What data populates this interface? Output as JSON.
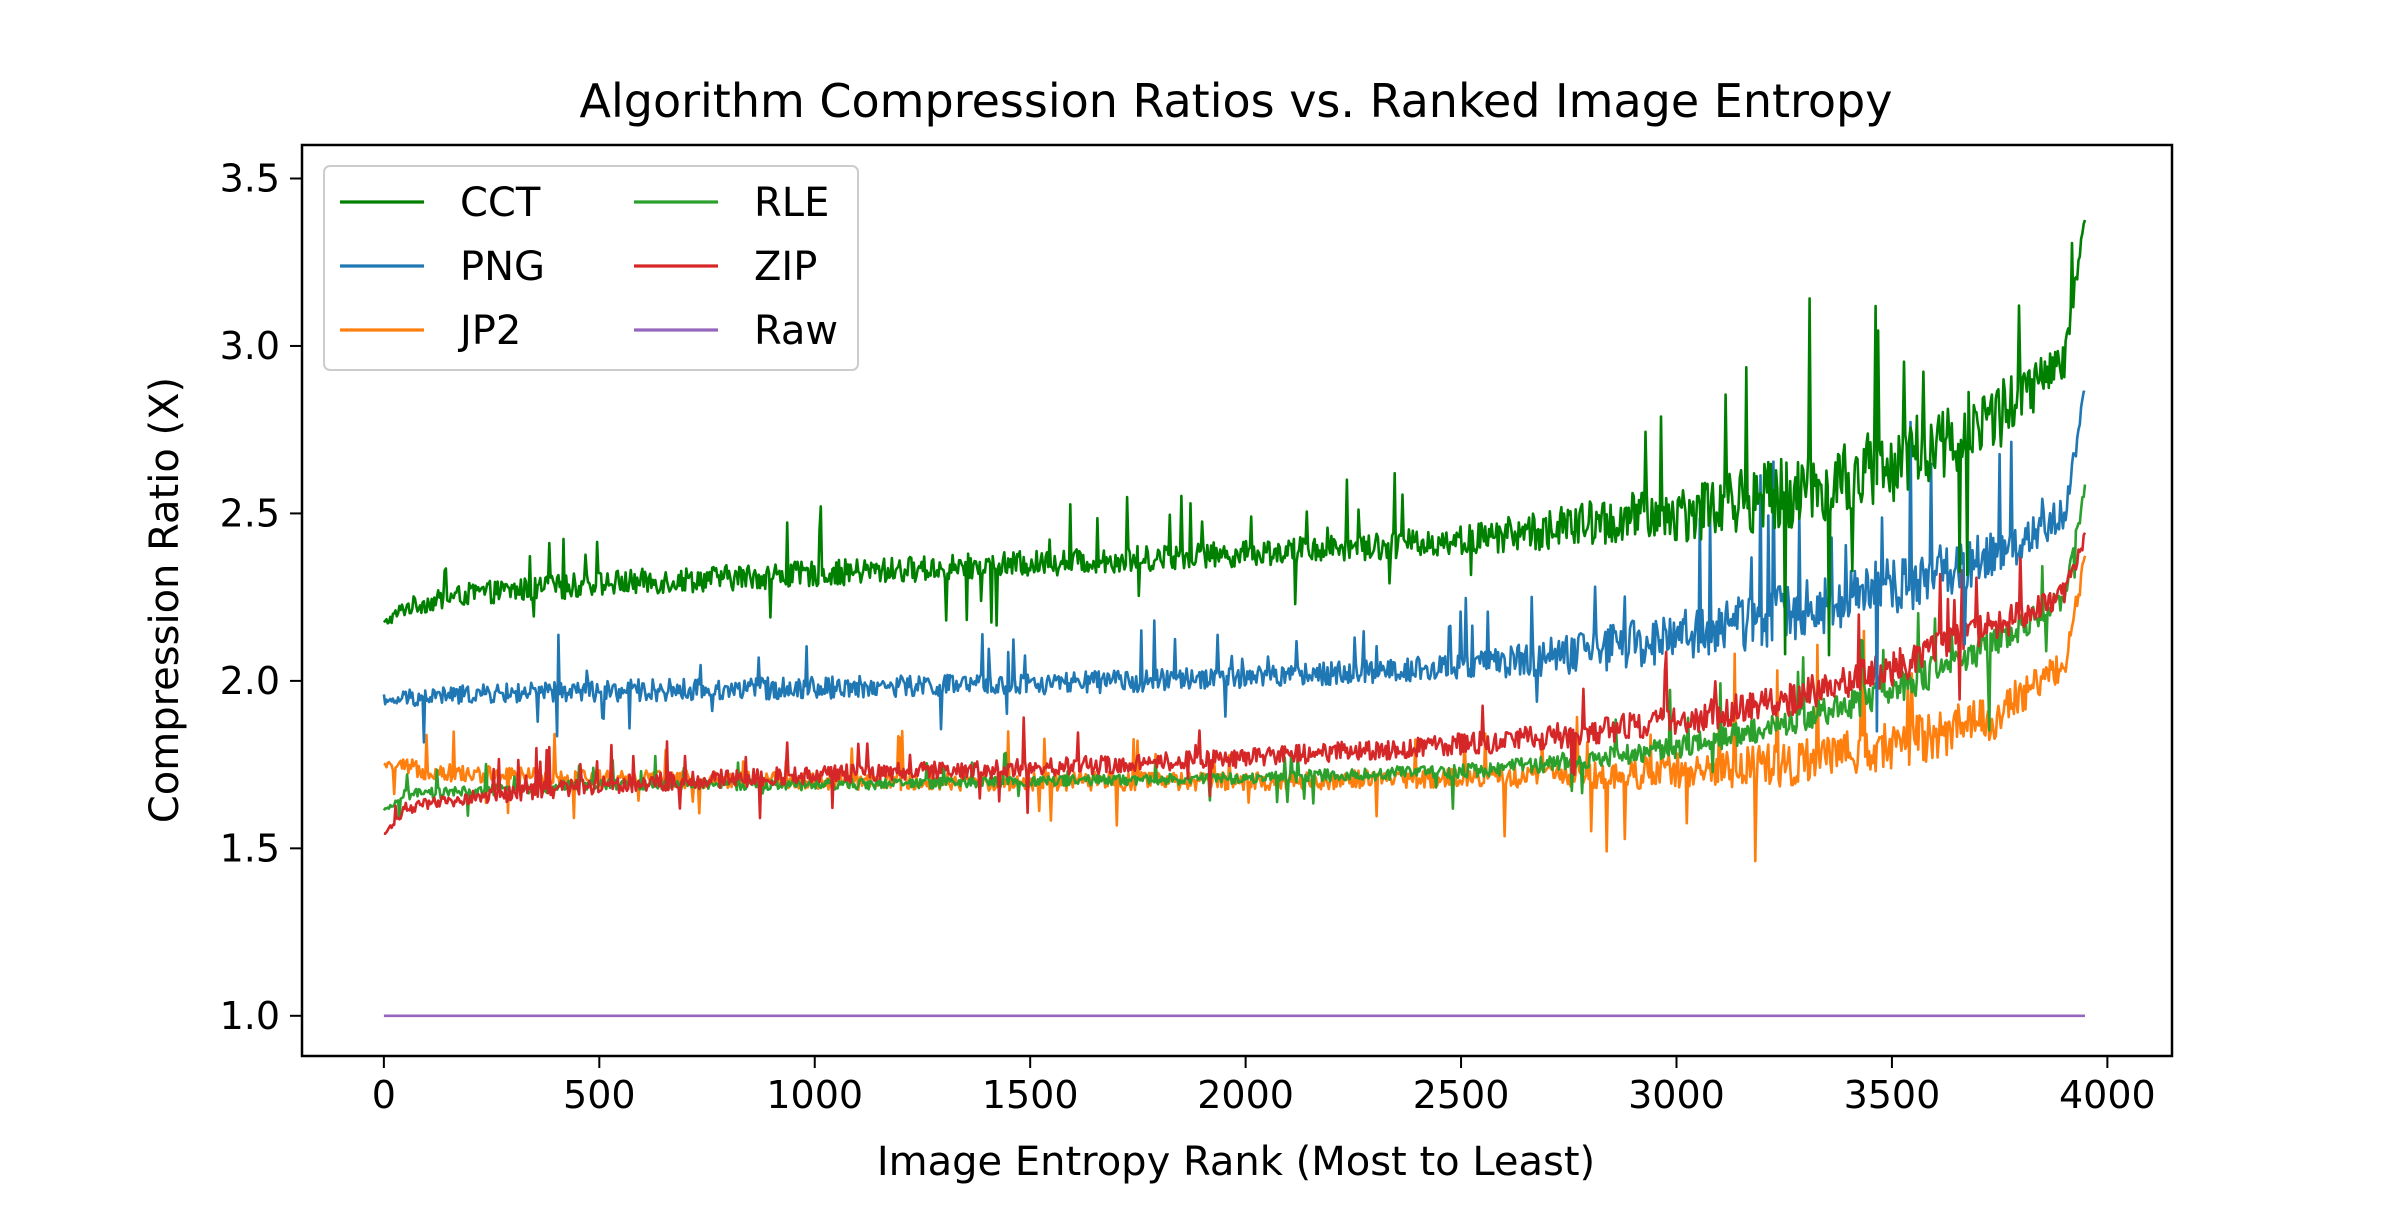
{
  "chart_data": {
    "type": "line",
    "title": "Algorithm Compression Ratios vs. Ranked Image Entropy",
    "xlabel": "Image Entropy Rank (Most to Least)",
    "ylabel": "Compression Ratio (X)",
    "xlim": [
      -190,
      4150
    ],
    "ylim": [
      0.88,
      3.6
    ],
    "xticks": [
      0,
      500,
      1000,
      1500,
      2000,
      2500,
      3000,
      3500,
      4000
    ],
    "yticks": [
      1.0,
      1.5,
      2.0,
      2.5,
      3.0,
      3.5
    ],
    "xtick_labels": [
      "0",
      "500",
      "1000",
      "1500",
      "2000",
      "2500",
      "3000",
      "3500",
      "4000"
    ],
    "ytick_labels": [
      "1.0",
      "1.5",
      "2.0",
      "2.5",
      "3.0",
      "3.5"
    ],
    "grid": false,
    "legend_position": "top-left",
    "legend_columns": 2,
    "n_points": 3950,
    "x": [
      0,
      50,
      200,
      500,
      1000,
      1500,
      2000,
      2500,
      2750,
      3000,
      3250,
      3500,
      3750,
      3900,
      3950
    ],
    "series": [
      {
        "name": "CCT",
        "color": "#008000",
        "values": [
          2.17,
          2.22,
          2.26,
          2.29,
          2.32,
          2.35,
          2.38,
          2.42,
          2.46,
          2.5,
          2.56,
          2.64,
          2.8,
          2.95,
          3.4
        ],
        "spread": [
          0.02,
          0.05,
          0.06,
          0.07,
          0.07,
          0.07,
          0.07,
          0.08,
          0.12,
          0.16,
          0.2,
          0.22,
          0.2,
          0.1,
          0.05
        ]
      },
      {
        "name": "PNG",
        "color": "#1f77b4",
        "values": [
          1.93,
          1.95,
          1.96,
          1.97,
          1.98,
          1.99,
          2.01,
          2.04,
          2.08,
          2.13,
          2.2,
          2.28,
          2.38,
          2.5,
          2.88
        ],
        "spread": [
          0.01,
          0.05,
          0.05,
          0.06,
          0.06,
          0.06,
          0.06,
          0.07,
          0.11,
          0.14,
          0.16,
          0.16,
          0.13,
          0.08,
          0.06
        ]
      },
      {
        "name": "JP2",
        "color": "#ff7f0e",
        "values": [
          1.75,
          1.74,
          1.72,
          1.71,
          1.7,
          1.7,
          1.7,
          1.71,
          1.72,
          1.73,
          1.75,
          1.8,
          1.9,
          2.05,
          2.38
        ],
        "spread": [
          0.01,
          0.05,
          0.05,
          0.05,
          0.05,
          0.05,
          0.05,
          0.05,
          0.07,
          0.1,
          0.12,
          0.14,
          0.13,
          0.08,
          0.05
        ]
      },
      {
        "name": "RLE",
        "color": "#2ca02c",
        "values": [
          1.61,
          1.66,
          1.67,
          1.69,
          1.69,
          1.7,
          1.71,
          1.73,
          1.76,
          1.8,
          1.87,
          1.97,
          2.12,
          2.25,
          2.58
        ],
        "spread": [
          0.01,
          0.03,
          0.03,
          0.03,
          0.03,
          0.03,
          0.03,
          0.04,
          0.05,
          0.06,
          0.07,
          0.09,
          0.08,
          0.06,
          0.04
        ]
      },
      {
        "name": "ZIP",
        "color": "#d62728",
        "values": [
          1.54,
          1.62,
          1.65,
          1.69,
          1.72,
          1.74,
          1.77,
          1.81,
          1.84,
          1.88,
          1.94,
          2.04,
          2.17,
          2.26,
          2.44
        ],
        "spread": [
          0.01,
          0.03,
          0.04,
          0.05,
          0.05,
          0.05,
          0.05,
          0.06,
          0.07,
          0.08,
          0.09,
          0.1,
          0.09,
          0.06,
          0.04
        ]
      },
      {
        "name": "Raw",
        "color": "#9467bd",
        "values": [
          1.0,
          1.0,
          1.0,
          1.0,
          1.0,
          1.0,
          1.0,
          1.0,
          1.0,
          1.0,
          1.0,
          1.0,
          1.0,
          1.0,
          1.0
        ],
        "spread": [
          0,
          0,
          0,
          0,
          0,
          0,
          0,
          0,
          0,
          0,
          0,
          0,
          0,
          0,
          0
        ]
      }
    ]
  }
}
